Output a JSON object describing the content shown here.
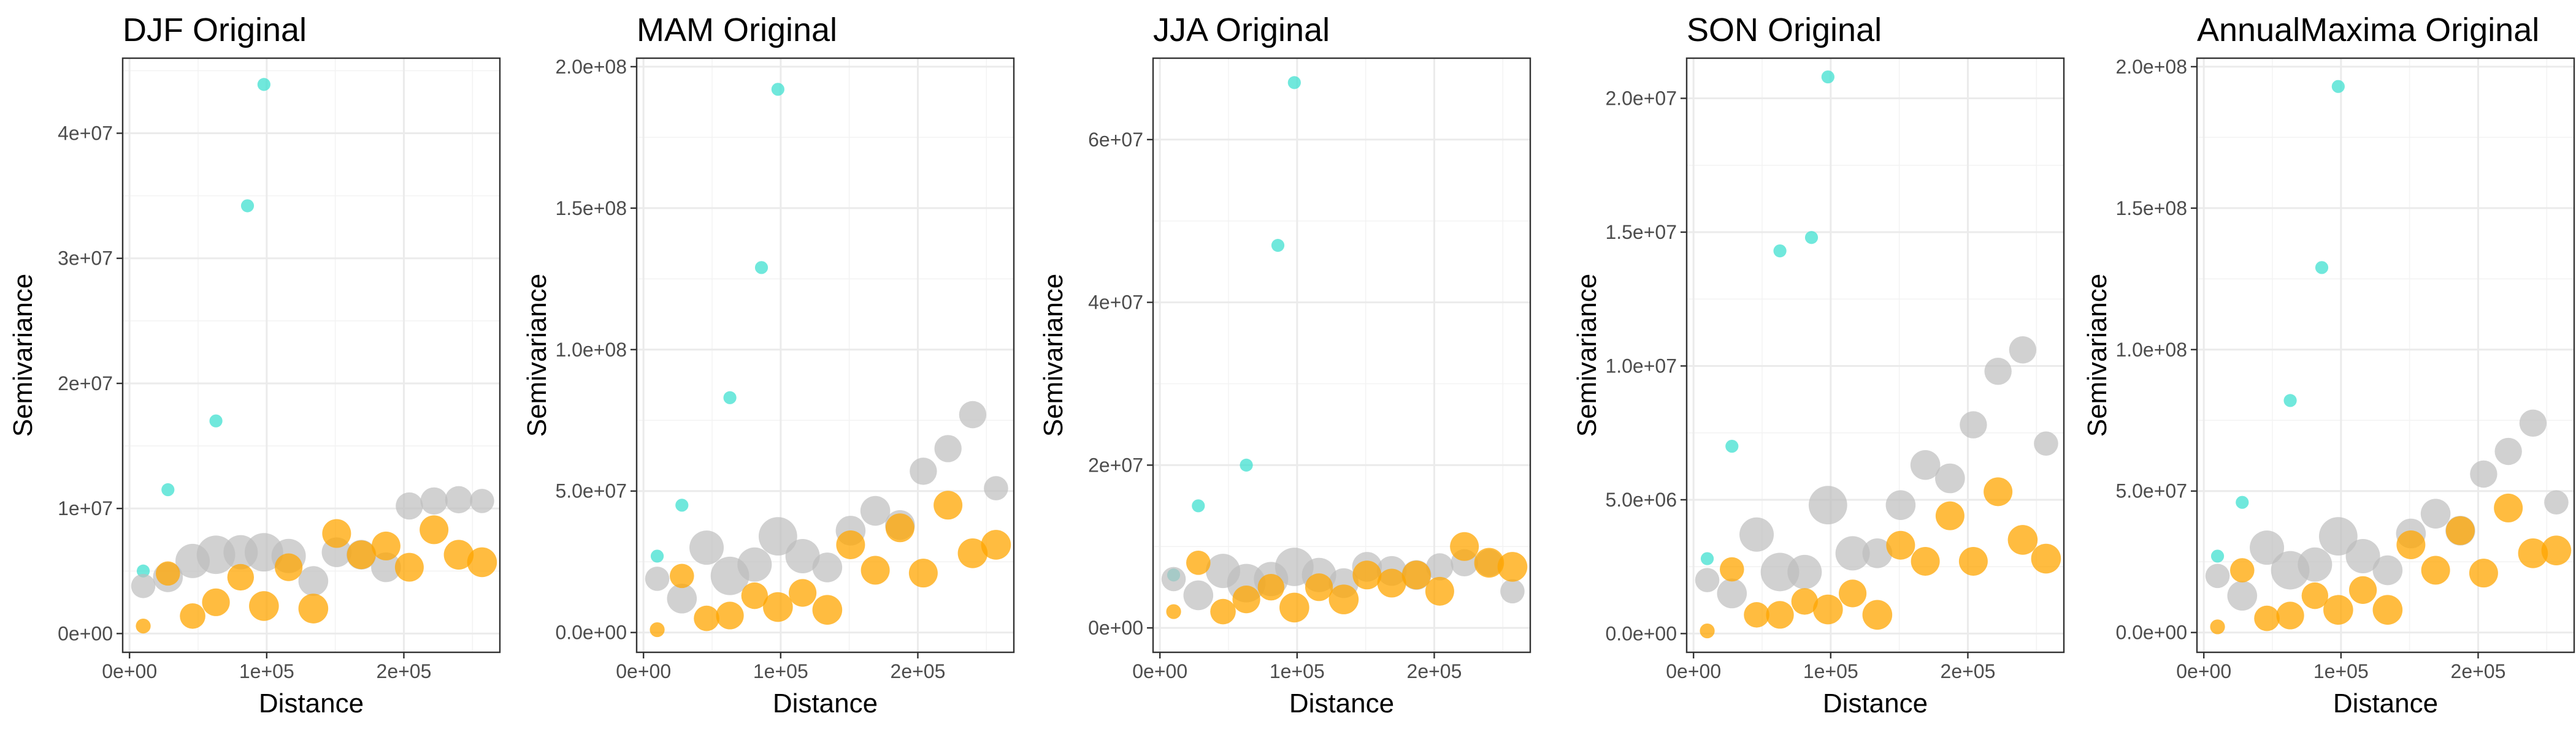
{
  "colors": {
    "cyan": "#40E0D0",
    "gray": "#BEBEBE",
    "orange": "#FFA500"
  },
  "chart_data": [
    {
      "type": "scatter",
      "title": "DJF Original",
      "xlabel": "Distance",
      "ylabel": "Semivariance",
      "xlim": [
        -5000,
        270000
      ],
      "ylim": [
        -1500000,
        46000000
      ],
      "x_ticks": [
        0,
        100000,
        200000
      ],
      "x_tick_labels": [
        "0e+00",
        "1e+05",
        "2e+05"
      ],
      "y_ticks": [
        0,
        10000000,
        20000000,
        30000000,
        40000000
      ],
      "y_tick_labels": [
        "0e+00",
        "1e+07",
        "2e+07",
        "3e+07",
        "4e+07"
      ],
      "grid": true,
      "series": [
        {
          "color": "#40E0D0",
          "x": [
            10000,
            28000,
            63000,
            86000,
            98000
          ],
          "y": [
            5000000,
            11500000,
            17000000,
            34200000,
            43900000
          ],
          "size": [
            1,
            1,
            1,
            1,
            1
          ]
        },
        {
          "color": "#BEBEBE",
          "x": [
            10000,
            28000,
            46000,
            63000,
            81000,
            98000,
            116000,
            134000,
            151000,
            169000,
            187000,
            204000,
            222000,
            240000,
            257000
          ],
          "y": [
            3800000,
            4500000,
            5800000,
            6300000,
            6500000,
            6500000,
            6200000,
            4200000,
            6500000,
            6300000,
            5300000,
            10200000,
            10600000,
            10700000,
            10600000
          ],
          "size": [
            2,
            3,
            4,
            5,
            4,
            5,
            4,
            3,
            3,
            3,
            3,
            2.5,
            2.5,
            2.5,
            2
          ]
        },
        {
          "color": "#FFA500",
          "x": [
            10000,
            28000,
            46000,
            63000,
            81000,
            98000,
            116000,
            134000,
            151000,
            169000,
            187000,
            204000,
            222000,
            240000,
            257000
          ],
          "y": [
            600000,
            4800000,
            1400000,
            2500000,
            4500000,
            2200000,
            5300000,
            2000000,
            8000000,
            6300000,
            7000000,
            5300000,
            8300000,
            6300000,
            5700000
          ],
          "size": [
            1.3,
            2,
            2.2,
            2.6,
            2.4,
            3,
            2.6,
            3,
            2.8,
            2.8,
            2.8,
            2.8,
            2.8,
            3,
            3
          ]
        }
      ]
    },
    {
      "type": "scatter",
      "title": "MAM Original",
      "xlabel": "Distance",
      "ylabel": "Semivariance",
      "xlim": [
        -5000,
        270000
      ],
      "ylim": [
        -7000000,
        203000000
      ],
      "x_ticks": [
        0,
        100000,
        200000
      ],
      "x_tick_labels": [
        "0e+00",
        "1e+05",
        "2e+05"
      ],
      "y_ticks": [
        0,
        50000000,
        100000000,
        150000000,
        200000000
      ],
      "y_tick_labels": [
        "0.0e+00",
        "5.0e+07",
        "1.0e+08",
        "1.5e+08",
        "2.0e+08"
      ],
      "grid": true,
      "series": [
        {
          "color": "#40E0D0",
          "x": [
            10000,
            28000,
            63000,
            86000,
            98000
          ],
          "y": [
            27000000,
            45000000,
            83000000,
            129000000,
            192000000
          ],
          "size": [
            1,
            1,
            1,
            1,
            1
          ]
        },
        {
          "color": "#BEBEBE",
          "x": [
            10000,
            28000,
            46000,
            63000,
            81000,
            98000,
            116000,
            134000,
            151000,
            169000,
            187000,
            204000,
            222000,
            240000,
            257000
          ],
          "y": [
            19000000,
            12000000,
            30000000,
            20000000,
            24000000,
            34000000,
            27000000,
            23000000,
            36000000,
            43000000,
            38000000,
            57000000,
            65000000,
            77000000,
            51000000
          ],
          "size": [
            2,
            3,
            4,
            5,
            4,
            5,
            4,
            3,
            3,
            3,
            3,
            2.5,
            2.5,
            2.5,
            2
          ]
        },
        {
          "color": "#FFA500",
          "x": [
            10000,
            28000,
            46000,
            63000,
            81000,
            98000,
            116000,
            134000,
            151000,
            169000,
            187000,
            204000,
            222000,
            240000,
            257000
          ],
          "y": [
            1000000,
            20000000,
            5000000,
            6000000,
            13000000,
            9000000,
            14000000,
            8000000,
            31000000,
            22000000,
            37000000,
            21000000,
            45000000,
            28000000,
            31000000
          ],
          "size": [
            1.3,
            2,
            2.2,
            2.6,
            2.4,
            3,
            2.6,
            3,
            2.8,
            2.8,
            2.8,
            2.8,
            2.8,
            3,
            3
          ]
        }
      ]
    },
    {
      "type": "scatter",
      "title": "JJA Original",
      "xlabel": "Distance",
      "ylabel": "Semivariance",
      "xlim": [
        -5000,
        270000
      ],
      "ylim": [
        -3000000,
        70000000
      ],
      "x_ticks": [
        0,
        100000,
        200000
      ],
      "x_tick_labels": [
        "0e+00",
        "1e+05",
        "2e+05"
      ],
      "y_ticks": [
        0,
        20000000,
        40000000,
        60000000
      ],
      "y_tick_labels": [
        "0e+00",
        "2e+07",
        "4e+07",
        "6e+07"
      ],
      "grid": true,
      "series": [
        {
          "color": "#40E0D0",
          "x": [
            10000,
            28000,
            63000,
            86000,
            98000
          ],
          "y": [
            6500000,
            15000000,
            20000000,
            47000000,
            67000000
          ],
          "size": [
            1,
            1,
            1,
            1,
            1
          ]
        },
        {
          "color": "#BEBEBE",
          "x": [
            10000,
            28000,
            46000,
            63000,
            81000,
            98000,
            116000,
            134000,
            151000,
            169000,
            187000,
            204000,
            222000,
            240000,
            257000
          ],
          "y": [
            6000000,
            4000000,
            7000000,
            5500000,
            6000000,
            7500000,
            6500000,
            5500000,
            7500000,
            7000000,
            6500000,
            7500000,
            8000000,
            8000000,
            4500000
          ],
          "size": [
            2,
            3,
            4,
            5,
            4,
            5,
            4,
            3,
            3,
            3,
            3,
            2.5,
            2.5,
            2.5,
            2
          ]
        },
        {
          "color": "#FFA500",
          "x": [
            10000,
            28000,
            46000,
            63000,
            81000,
            98000,
            116000,
            134000,
            151000,
            169000,
            187000,
            204000,
            222000,
            240000,
            257000
          ],
          "y": [
            2000000,
            8000000,
            2000000,
            3500000,
            5000000,
            2500000,
            5000000,
            3500000,
            6500000,
            5500000,
            6500000,
            4500000,
            10000000,
            8000000,
            7500000
          ],
          "size": [
            1.3,
            2,
            2.2,
            2.6,
            2.4,
            3,
            2.6,
            3,
            2.8,
            2.8,
            2.8,
            2.8,
            2.8,
            3,
            3
          ]
        }
      ]
    },
    {
      "type": "scatter",
      "title": "SON Original",
      "xlabel": "Distance",
      "ylabel": "Semivariance",
      "xlim": [
        -5000,
        270000
      ],
      "ylim": [
        -700000,
        21500000
      ],
      "x_ticks": [
        0,
        100000,
        200000
      ],
      "x_tick_labels": [
        "0e+00",
        "1e+05",
        "2e+05"
      ],
      "y_ticks": [
        0,
        5000000,
        10000000,
        15000000,
        20000000
      ],
      "y_tick_labels": [
        "0.0e+00",
        "5.0e+06",
        "1.0e+07",
        "1.5e+07",
        "2.0e+07"
      ],
      "grid": true,
      "series": [
        {
          "color": "#40E0D0",
          "x": [
            10000,
            28000,
            63000,
            86000,
            98000
          ],
          "y": [
            2800000,
            7000000,
            14300000,
            14800000,
            20800000
          ],
          "size": [
            1,
            1,
            1,
            1,
            1
          ]
        },
        {
          "color": "#BEBEBE",
          "x": [
            10000,
            28000,
            46000,
            63000,
            81000,
            98000,
            116000,
            134000,
            151000,
            169000,
            187000,
            204000,
            222000,
            240000,
            257000
          ],
          "y": [
            2000000,
            1500000,
            3700000,
            2300000,
            2300000,
            4800000,
            3000000,
            3000000,
            4800000,
            6300000,
            5800000,
            7800000,
            9800000,
            10600000,
            7100000
          ],
          "size": [
            2,
            3,
            4,
            5,
            4,
            5,
            4,
            3,
            3,
            3,
            3,
            2.5,
            2.5,
            2.5,
            2
          ]
        },
        {
          "color": "#FFA500",
          "x": [
            10000,
            28000,
            46000,
            63000,
            81000,
            98000,
            116000,
            134000,
            151000,
            169000,
            187000,
            204000,
            222000,
            240000,
            257000
          ],
          "y": [
            100000,
            2400000,
            700000,
            700000,
            1200000,
            900000,
            1500000,
            700000,
            3300000,
            2700000,
            4400000,
            2700000,
            5300000,
            3500000,
            2800000
          ],
          "size": [
            1.3,
            2,
            2.2,
            2.6,
            2.4,
            3,
            2.6,
            3,
            2.8,
            2.8,
            2.8,
            2.8,
            2.8,
            3,
            3
          ]
        }
      ]
    },
    {
      "type": "scatter",
      "title": "AnnualMaxima Original",
      "xlabel": "Distance",
      "ylabel": "Semivariance",
      "xlim": [
        -5000,
        270000
      ],
      "ylim": [
        -7000000,
        203000000
      ],
      "x_ticks": [
        0,
        100000,
        200000
      ],
      "x_tick_labels": [
        "0e+00",
        "1e+05",
        "2e+05"
      ],
      "y_ticks": [
        0,
        50000000,
        100000000,
        150000000,
        200000000
      ],
      "y_tick_labels": [
        "0.0e+00",
        "5.0e+07",
        "1.0e+08",
        "1.5e+08",
        "2.0e+08"
      ],
      "grid": true,
      "series": [
        {
          "color": "#40E0D0",
          "x": [
            10000,
            28000,
            63000,
            86000,
            98000
          ],
          "y": [
            27000000,
            46000000,
            82000000,
            129000000,
            193000000
          ],
          "size": [
            1,
            1,
            1,
            1,
            1
          ]
        },
        {
          "color": "#BEBEBE",
          "x": [
            10000,
            28000,
            46000,
            63000,
            81000,
            98000,
            116000,
            134000,
            151000,
            169000,
            187000,
            204000,
            222000,
            240000,
            257000
          ],
          "y": [
            20000000,
            13000000,
            30000000,
            22000000,
            24000000,
            34000000,
            27000000,
            22000000,
            35000000,
            42000000,
            36000000,
            56000000,
            64000000,
            74000000,
            46000000
          ],
          "size": [
            2,
            3,
            4,
            5,
            4,
            5,
            4,
            3,
            3,
            3,
            3,
            2.5,
            2.5,
            2.5,
            2
          ]
        },
        {
          "color": "#FFA500",
          "x": [
            10000,
            28000,
            46000,
            63000,
            81000,
            98000,
            116000,
            134000,
            151000,
            169000,
            187000,
            204000,
            222000,
            240000,
            257000
          ],
          "y": [
            2000000,
            22000000,
            5000000,
            6000000,
            13000000,
            8000000,
            15000000,
            8000000,
            31000000,
            22000000,
            36000000,
            21000000,
            44000000,
            28000000,
            29000000
          ],
          "size": [
            1.3,
            2,
            2.2,
            2.6,
            2.4,
            3,
            2.6,
            3,
            2.8,
            2.8,
            2.8,
            2.8,
            2.8,
            3,
            3
          ]
        }
      ]
    }
  ]
}
